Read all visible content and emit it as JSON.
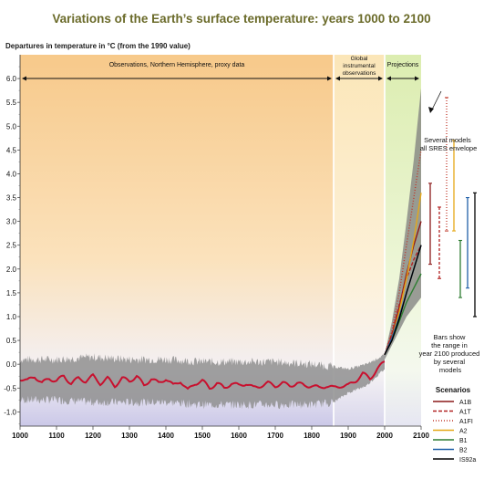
{
  "chart_data": {
    "type": "line",
    "title": "Variations of the Earth’s surface temperature: years 1000 to 2100",
    "ylabel": "Departures in temperature in °C (from the 1990 value)",
    "x_ticks": [
      "1000",
      "1100",
      "1200",
      "1300",
      "1400",
      "1500",
      "1600",
      "1700",
      "1800",
      "1900",
      "2000",
      "2100"
    ],
    "y_ticks": [
      "6.0",
      "5.5",
      "5.0",
      "4.5",
      "4.0",
      "3.5",
      "3.0",
      "2.5",
      "2.0",
      "1.5",
      "1.0",
      "0.5",
      "0.0",
      "-0.5",
      "-1.0"
    ],
    "xlim": [
      1000,
      2100
    ],
    "ylim": [
      -1.3,
      6.5
    ],
    "periods": [
      {
        "label": "Observations, Northern Hemisphere, proxy data",
        "start": 1000,
        "end": 1860,
        "color": "#f7c98a"
      },
      {
        "label": "Global instrumental observations",
        "start": 1860,
        "end": 2000,
        "color": "#fbe6b8"
      },
      {
        "label": "Projections",
        "start": 2000,
        "end": 2100,
        "color": "#dcedb0"
      }
    ],
    "envelope_label": "Several models all SRES envelope",
    "bars_note": "Bars show the range in year 2100 produced by several models",
    "legend_title": "Scenarios",
    "proxy_series": {
      "name": "Northern Hemisphere proxy reconstruction",
      "color": "#c8102e",
      "x": [
        1000,
        1020,
        1040,
        1060,
        1080,
        1100,
        1120,
        1140,
        1160,
        1180,
        1200,
        1220,
        1240,
        1260,
        1280,
        1300,
        1320,
        1340,
        1360,
        1380,
        1400,
        1420,
        1440,
        1460,
        1480,
        1500,
        1520,
        1540,
        1560,
        1580,
        1600,
        1620,
        1640,
        1660,
        1680,
        1700,
        1720,
        1740,
        1760,
        1780,
        1800,
        1820,
        1840,
        1860,
        1880,
        1900,
        1920,
        1940,
        1960,
        1980,
        2000
      ],
      "y": [
        -0.3,
        -0.35,
        -0.25,
        -0.4,
        -0.3,
        -0.35,
        -0.25,
        -0.4,
        -0.3,
        -0.35,
        -0.25,
        -0.4,
        -0.3,
        -0.45,
        -0.3,
        -0.35,
        -0.25,
        -0.45,
        -0.3,
        -0.4,
        -0.3,
        -0.45,
        -0.35,
        -0.55,
        -0.4,
        -0.35,
        -0.5,
        -0.4,
        -0.5,
        -0.4,
        -0.45,
        -0.4,
        -0.5,
        -0.45,
        -0.4,
        -0.45,
        -0.4,
        -0.45,
        -0.4,
        -0.45,
        -0.45,
        -0.5,
        -0.45,
        -0.5,
        -0.45,
        -0.45,
        -0.35,
        -0.2,
        -0.3,
        -0.1,
        0.05
      ]
    },
    "uncertainty_band": {
      "x": [
        1000,
        1100,
        1200,
        1300,
        1400,
        1500,
        1600,
        1700,
        1800,
        1860,
        1900,
        1950,
        2000
      ],
      "upper": [
        0.1,
        0.1,
        0.15,
        0.1,
        0.1,
        0.05,
        0.05,
        0.05,
        0.0,
        -0.05,
        -0.1,
        0.0,
        0.2
      ],
      "lower": [
        -0.75,
        -0.75,
        -0.8,
        -0.8,
        -0.8,
        -0.85,
        -0.85,
        -0.85,
        -0.85,
        -0.8,
        -0.6,
        -0.45,
        -0.1
      ]
    },
    "envelope": {
      "x": [
        2000,
        2020,
        2040,
        2060,
        2080,
        2100
      ],
      "upper": [
        0.2,
        0.9,
        1.8,
        3.0,
        4.3,
        5.8
      ],
      "lower": [
        0.1,
        0.4,
        0.7,
        1.0,
        1.2,
        1.4
      ]
    },
    "series": [
      {
        "name": "A1B",
        "color": "#8b1a1a",
        "dash": "",
        "x": [
          2000,
          2020,
          2040,
          2060,
          2080,
          2100
        ],
        "values": [
          0.2,
          0.6,
          1.2,
          1.9,
          2.5,
          3.0
        ]
      },
      {
        "name": "A1T",
        "color": "#b22222",
        "dash": "4,2",
        "x": [
          2000,
          2020,
          2040,
          2060,
          2080,
          2100
        ],
        "values": [
          0.2,
          0.65,
          1.25,
          1.8,
          2.2,
          2.5
        ]
      },
      {
        "name": "A1FI",
        "color": "#c0392b",
        "dash": "1,2",
        "x": [
          2000,
          2020,
          2040,
          2060,
          2080,
          2100
        ],
        "values": [
          0.2,
          0.7,
          1.5,
          2.5,
          3.5,
          4.5
        ]
      },
      {
        "name": "A2",
        "color": "#e6a817",
        "dash": "",
        "x": [
          2000,
          2020,
          2040,
          2060,
          2080,
          2100
        ],
        "values": [
          0.2,
          0.55,
          1.1,
          1.8,
          2.6,
          3.6
        ]
      },
      {
        "name": "B1",
        "color": "#2e7d32",
        "dash": "",
        "x": [
          2000,
          2020,
          2040,
          2060,
          2080,
          2100
        ],
        "values": [
          0.2,
          0.5,
          0.9,
          1.3,
          1.6,
          1.9
        ]
      },
      {
        "name": "B2",
        "color": "#1f5fa8",
        "dash": "",
        "x": [
          2000,
          2020,
          2040,
          2060,
          2080,
          2100
        ],
        "values": [
          0.2,
          0.55,
          1.0,
          1.5,
          2.0,
          2.5
        ]
      },
      {
        "name": "IS92a",
        "color": "#000000",
        "dash": "",
        "x": [
          2000,
          2020,
          2040,
          2060,
          2080,
          2100
        ],
        "values": [
          0.2,
          0.5,
          0.95,
          1.5,
          2.0,
          2.5
        ]
      }
    ],
    "range_bars": [
      {
        "name": "A1B",
        "color": "#8b1a1a",
        "dash": "",
        "low": 2.1,
        "high": 3.8
      },
      {
        "name": "A1T",
        "color": "#b22222",
        "dash": "3,2",
        "low": 1.8,
        "high": 3.3
      },
      {
        "name": "A1FI",
        "color": "#c0392b",
        "dash": "1,2",
        "low": 2.8,
        "high": 5.6
      },
      {
        "name": "A2",
        "color": "#e6a817",
        "dash": "",
        "low": 2.8,
        "high": 4.7
      },
      {
        "name": "B1",
        "color": "#2e7d32",
        "dash": "",
        "low": 1.4,
        "high": 2.6
      },
      {
        "name": "B2",
        "color": "#1f5fa8",
        "dash": "",
        "low": 1.6,
        "high": 3.5
      },
      {
        "name": "IS92a",
        "color": "#000000",
        "dash": "",
        "low": 1.0,
        "high": 3.6
      }
    ]
  }
}
